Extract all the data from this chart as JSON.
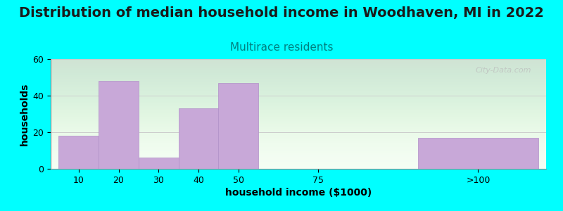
{
  "title": "Distribution of median household income in Woodhaven, MI in 2022",
  "subtitle": "Multirace residents",
  "xlabel": "household income ($1000)",
  "ylabel": "households",
  "background_color": "#00FFFF",
  "bar_color": "#C8A8D8",
  "bar_edge_color": "#B090C8",
  "categories": [
    "10",
    "20",
    "30",
    "40",
    "50",
    "75",
    ">100"
  ],
  "values": [
    18,
    48,
    6,
    33,
    47,
    0,
    17
  ],
  "x_positions": [
    0,
    1,
    2,
    3,
    4,
    6,
    9
  ],
  "bar_widths": [
    1,
    1,
    1,
    1,
    1,
    1,
    3
  ],
  "ylim": [
    0,
    60
  ],
  "yticks": [
    0,
    20,
    40,
    60
  ],
  "title_fontsize": 14,
  "subtitle_fontsize": 11,
  "subtitle_color": "#008080",
  "axis_label_fontsize": 10,
  "tick_fontsize": 9,
  "watermark": "City-Data.com"
}
